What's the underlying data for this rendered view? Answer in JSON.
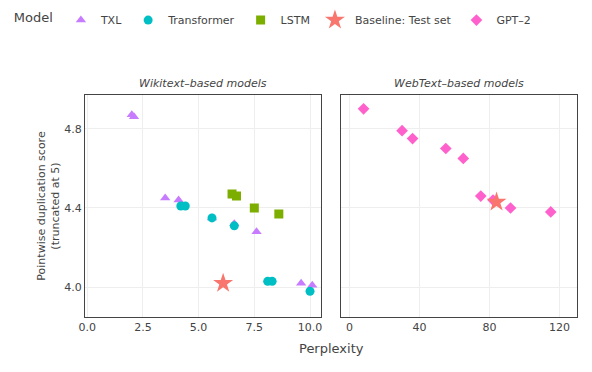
{
  "chart_data": {
    "type": "scatter",
    "title": "Model",
    "xlabel": "Perplexity",
    "ylabel": "Pointwise duplication score\n(truncated at 5)",
    "ylim": [
      3.85,
      4.97
    ],
    "yticks": [
      {
        "value": 4.0,
        "label": "4.0"
      },
      4.4,
      4.8
    ],
    "grid": true,
    "panels": [
      {
        "title": "Wikitext–based models",
        "xlim": [
          -0.1,
          10.5
        ],
        "xticks": [
          {
            "value": 0.0,
            "label": "0.0"
          },
          2.5,
          {
            "value": 5.0,
            "label": "5.0"
          },
          7.5,
          {
            "value": 10.0,
            "label": "10.0"
          }
        ],
        "series": [
          {
            "name": "TXL",
            "color": "#C77CFF",
            "marker": "triangle-up",
            "x": [
              2.0,
              2.1,
              3.5,
              4.1,
              5.6,
              6.6,
              7.6,
              9.6,
              10.1
            ],
            "values": [
              4.87,
              4.86,
              4.45,
              4.44,
              4.35,
              4.32,
              4.28,
              4.02,
              4.01
            ]
          },
          {
            "name": "Transformer",
            "color": "#00BFC4",
            "marker": "circle",
            "x": [
              4.2,
              4.4,
              5.6,
              6.6,
              8.1,
              8.3,
              10.0
            ],
            "values": [
              4.41,
              4.41,
              4.35,
              4.31,
              4.03,
              4.03,
              3.98
            ]
          },
          {
            "name": "LSTM",
            "color": "#7CAE00",
            "marker": "square",
            "x": [
              6.5,
              6.7,
              7.5,
              8.6
            ],
            "values": [
              4.47,
              4.46,
              4.4,
              4.37
            ]
          },
          {
            "name": "Baseline: Test set",
            "color": "#F8766D",
            "marker": "star",
            "x": [
              6.1
            ],
            "values": [
              4.02
            ]
          }
        ]
      },
      {
        "title": "WebText–based models",
        "xlim": [
          -5.0,
          130.0
        ],
        "xticks": [
          0,
          40,
          80,
          120
        ],
        "tick_labels": "x",
        "series": [
          {
            "name": "GPT–2",
            "color": "#FF61CC",
            "marker": "diamond",
            "x": [
              8.0,
              30.0,
              36.0,
              55.0,
              65.0,
              75.0,
              82.0,
              92.0,
              115.0
            ],
            "values": [
              4.9,
              4.79,
              4.75,
              4.7,
              4.65,
              4.46,
              4.44,
              4.4,
              4.38
            ]
          },
          {
            "name": "Baseline: Test set",
            "color": "#F8766D",
            "marker": "star",
            "x": [
              84.0
            ],
            "values": [
              4.43
            ]
          }
        ]
      }
    ]
  }
}
